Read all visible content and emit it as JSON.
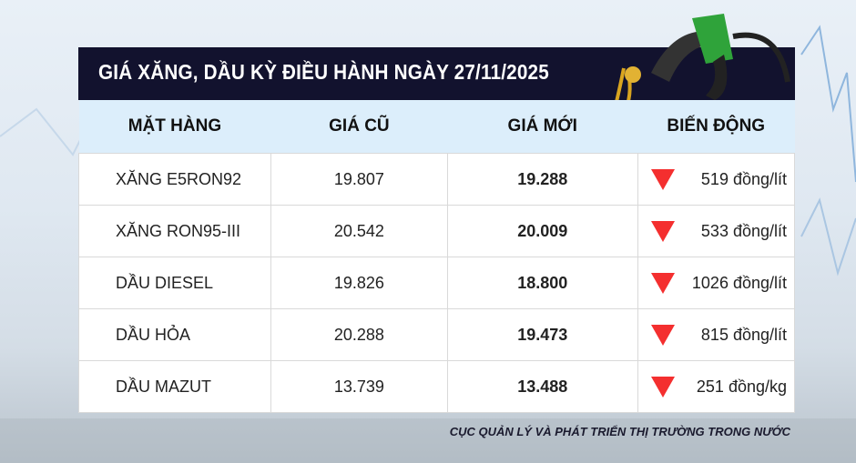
{
  "title": "GIÁ XĂNG, DẦU KỲ ĐIỀU HÀNH NGÀY 27/11/2025",
  "columns": [
    "MẶT HÀNG",
    "GIÁ CŨ",
    "GIÁ MỚI",
    "BIẾN ĐỘNG"
  ],
  "rows": [
    {
      "name": "XĂNG E5RON92",
      "old": "19.807",
      "new": "19.288",
      "change": "519 đồng/lít",
      "direction": "down"
    },
    {
      "name": "XĂNG RON95-III",
      "old": "20.542",
      "new": "20.009",
      "change": "533 đồng/lít",
      "direction": "down"
    },
    {
      "name": "DẦU DIESEL",
      "old": "19.826",
      "new": "18.800",
      "change": "1026 đồng/lít",
      "direction": "down"
    },
    {
      "name": "DẦU HỎA",
      "old": "20.288",
      "new": "19.473",
      "change": "815 đồng/lít",
      "direction": "down"
    },
    {
      "name": "DẦU MAZUT",
      "old": "13.739",
      "new": "13.488",
      "change": "251 đồng/kg",
      "direction": "down"
    }
  ],
  "footer": "CỤC QUẢN LÝ VÀ PHÁT TRIỂN THỊ TRƯỜNG TRONG NƯỚC",
  "colors": {
    "header_bg": "#12122e",
    "column_header_bg": "#dceefb",
    "down_arrow": "#f42f2f"
  }
}
